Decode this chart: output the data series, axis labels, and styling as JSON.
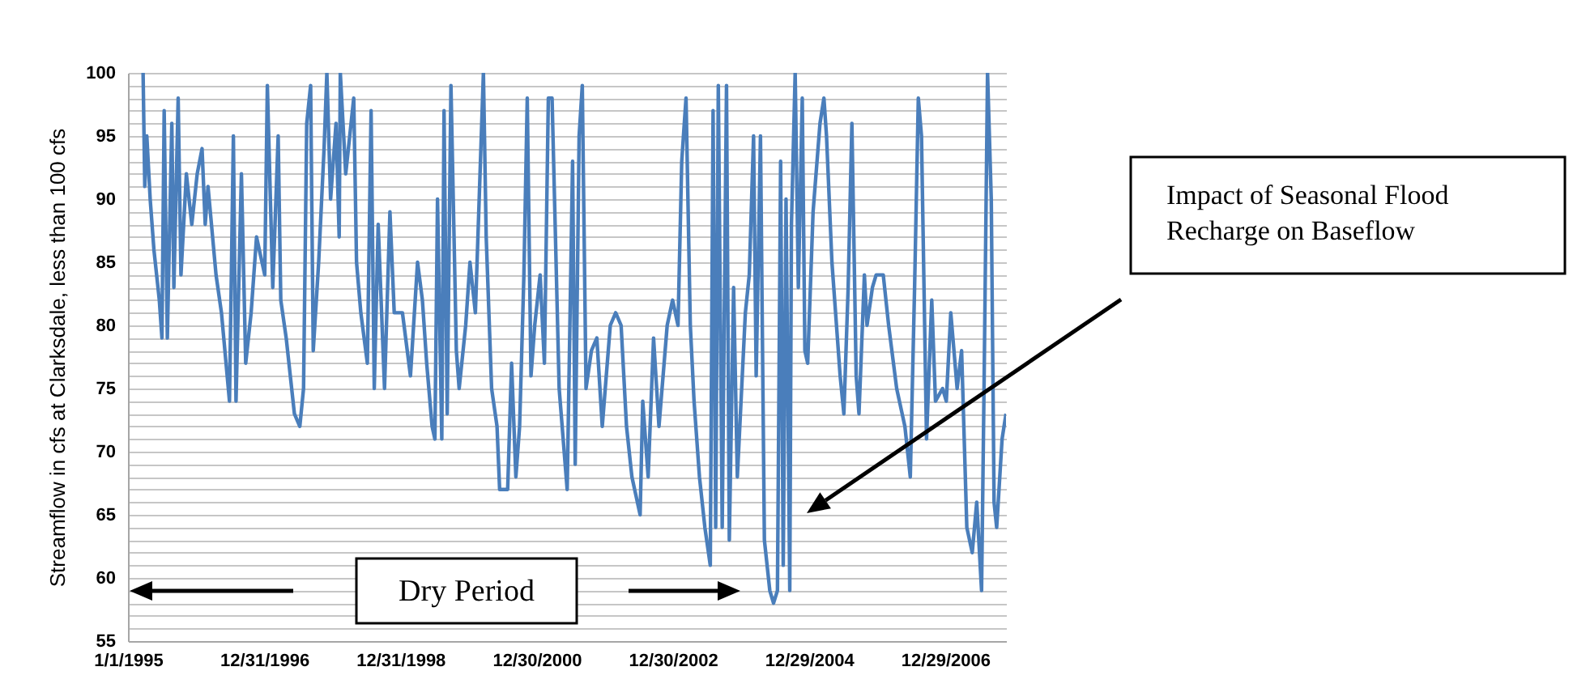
{
  "chart_data": {
    "type": "line",
    "ylabel": "Streamflow in cfs at Clarksdale, less than 100 cfs",
    "color": "#4a7ebb",
    "grid": "y",
    "xlim": [
      "1995-01-01",
      "2007-11-20"
    ],
    "xticks": [
      {
        "value": "1995-01-01",
        "label": "1/1/1995"
      },
      {
        "value": "1996-12-31",
        "label": "12/31/1996"
      },
      {
        "value": "1998-12-31",
        "label": "12/31/1998"
      },
      {
        "value": "2000-12-30",
        "label": "12/30/2000"
      },
      {
        "value": "2002-12-30",
        "label": "12/30/2002"
      },
      {
        "value": "2004-12-29",
        "label": "12/29/2004"
      },
      {
        "value": "2006-12-29",
        "label": "12/29/2006"
      }
    ],
    "ylim": [
      55,
      100
    ],
    "yticks": [
      55,
      {
        "value": 56,
        "label": null
      },
      {
        "value": 57,
        "label": null
      },
      {
        "value": 58,
        "label": null
      },
      {
        "value": 59,
        "label": null
      },
      60,
      {
        "value": 61,
        "label": null
      },
      {
        "value": 62,
        "label": null
      },
      {
        "value": 63,
        "label": null
      },
      {
        "value": 64,
        "label": null
      },
      65,
      {
        "value": 66,
        "label": null
      },
      {
        "value": 67,
        "label": null
      },
      {
        "value": 68,
        "label": null
      },
      {
        "value": 69,
        "label": null
      },
      70,
      {
        "value": 71,
        "label": null
      },
      {
        "value": 72,
        "label": null
      },
      {
        "value": 73,
        "label": null
      },
      {
        "value": 74,
        "label": null
      },
      75,
      {
        "value": 76,
        "label": null
      },
      {
        "value": 77,
        "label": null
      },
      {
        "value": 78,
        "label": null
      },
      {
        "value": 79,
        "label": null
      },
      80,
      {
        "value": 81,
        "label": null
      },
      {
        "value": 82,
        "label": null
      },
      {
        "value": 83,
        "label": null
      },
      {
        "value": 84,
        "label": null
      },
      85,
      {
        "value": 86,
        "label": null
      },
      {
        "value": 87,
        "label": null
      },
      {
        "value": 88,
        "label": null
      },
      {
        "value": 89,
        "label": null
      },
      90,
      {
        "value": 91,
        "label": null
      },
      {
        "value": 92,
        "label": null
      },
      {
        "value": 93,
        "label": null
      },
      {
        "value": 94,
        "label": null
      },
      95,
      {
        "value": 96,
        "label": null
      },
      {
        "value": 97,
        "label": null
      },
      {
        "value": 98,
        "label": null
      },
      {
        "value": 99,
        "label": null
      },
      100
    ],
    "x": [
      "1995-03-23",
      "1995-04-01",
      "1995-04-12",
      "1995-04-30",
      "1995-05-20",
      "1995-06-18",
      "1995-07-02",
      "1995-07-14",
      "1995-07-31",
      "1995-08-24",
      "1995-09-04",
      "1995-09-27",
      "1995-10-12",
      "1995-11-10",
      "1995-12-09",
      "1996-01-07",
      "1996-02-02",
      "1996-02-19",
      "1996-03-05",
      "1996-04-17",
      "1996-05-16",
      "1996-06-28",
      "1996-07-19",
      "1996-08-02",
      "1996-08-31",
      "1996-09-23",
      "1996-10-22",
      "1996-11-20",
      "1997-01-03",
      "1997-01-17",
      "1997-02-15",
      "1997-03-16",
      "1997-03-30",
      "1997-04-28",
      "1997-06-11",
      "1997-07-10",
      "1997-07-30",
      "1997-08-16",
      "1997-09-06",
      "1997-09-20",
      "1997-10-19",
      "1997-11-17",
      "1997-12-02",
      "1997-12-22",
      "1998-01-20",
      "1998-02-06",
      "1998-02-12",
      "1998-03-13",
      "1998-04-25",
      "1998-05-10",
      "1998-06-02",
      "1998-07-07",
      "1998-07-27",
      "1998-08-13",
      "1998-09-03",
      "1998-10-07",
      "1998-11-05",
      "1998-11-28",
      "1999-01-11",
      "1999-02-23",
      "1999-04-02",
      "1999-04-28",
      "1999-05-21",
      "1999-06-19",
      "1999-07-04",
      "1999-07-18",
      "1999-08-10",
      "1999-08-22",
      "1999-09-08",
      "1999-09-28",
      "1999-10-27",
      "1999-11-11",
      "1999-12-16",
      "2000-01-08",
      "2000-02-06",
      "2000-03-20",
      "2000-04-04",
      "2000-05-03",
      "2000-06-01",
      "2000-06-15",
      "2000-07-28",
      "2000-08-18",
      "2000-09-10",
      "2000-09-30",
      "2000-10-23",
      "2000-11-10",
      "2000-11-30",
      "2000-12-20",
      "2001-01-18",
      "2001-02-10",
      "2001-03-03",
      "2001-03-23",
      "2001-04-30",
      "2001-06-12",
      "2001-07-11",
      "2001-07-25",
      "2001-08-15",
      "2001-09-01",
      "2001-09-21",
      "2001-10-20",
      "2001-11-18",
      "2001-12-17",
      "2002-01-29",
      "2002-02-27",
      "2002-03-28",
      "2002-04-26",
      "2002-05-25",
      "2002-07-08",
      "2002-07-22",
      "2002-08-20",
      "2002-09-18",
      "2002-10-17",
      "2002-11-30",
      "2002-12-29",
      "2003-01-27",
      "2003-02-16",
      "2003-03-11",
      "2003-04-03",
      "2003-04-23",
      "2003-05-22",
      "2003-06-20",
      "2003-07-19",
      "2003-08-03",
      "2003-08-17",
      "2003-08-31",
      "2003-09-21",
      "2003-10-14",
      "2003-10-29",
      "2003-11-21",
      "2003-12-11",
      "2004-01-23",
      "2004-02-13",
      "2004-03-07",
      "2004-03-21",
      "2004-04-13",
      "2004-05-04",
      "2004-06-02",
      "2004-06-22",
      "2004-07-13",
      "2004-07-30",
      "2004-08-13",
      "2004-08-28",
      "2004-09-17",
      "2004-09-26",
      "2004-10-16",
      "2004-11-02",
      "2004-11-23",
      "2004-12-07",
      "2004-12-22",
      "2005-01-20",
      "2005-02-26",
      "2005-03-19",
      "2005-04-02",
      "2005-05-01",
      "2005-06-14",
      "2005-07-04",
      "2005-07-27",
      "2005-08-16",
      "2005-09-08",
      "2005-09-23",
      "2005-10-22",
      "2005-11-05",
      "2005-12-04",
      "2005-12-24",
      "2006-01-31",
      "2006-03-01",
      "2006-04-13",
      "2006-05-27",
      "2006-06-25",
      "2006-07-18",
      "2006-08-07",
      "2006-08-24",
      "2006-09-20",
      "2006-10-18",
      "2006-11-07",
      "2006-12-15",
      "2007-01-04",
      "2007-01-28",
      "2007-03-03",
      "2007-03-27",
      "2007-04-24",
      "2007-05-23",
      "2007-06-16",
      "2007-07-12",
      "2007-07-26",
      "2007-08-13",
      "2007-09-02",
      "2007-09-17",
      "2007-10-01",
      "2007-10-30",
      "2007-11-20"
    ],
    "values": [
      100,
      91,
      95,
      90,
      86,
      82,
      79,
      97,
      79,
      96,
      83,
      98,
      84,
      92,
      88,
      92,
      94,
      88,
      91,
      84,
      81,
      74,
      95,
      74,
      92,
      77,
      81,
      87,
      84,
      99,
      83,
      95,
      82,
      79,
      73,
      72,
      75,
      96,
      99,
      78,
      85,
      94,
      100,
      90,
      96,
      87,
      100,
      92,
      98,
      85,
      81,
      77,
      97,
      75,
      88,
      75,
      89,
      81,
      81,
      76,
      85,
      82,
      77,
      72,
      71,
      90,
      71,
      97,
      73,
      99,
      78,
      75,
      80,
      85,
      81,
      100,
      87,
      75,
      72,
      67,
      67,
      77,
      68,
      72,
      84,
      98,
      76,
      80,
      84,
      77,
      98,
      98,
      75,
      67,
      93,
      69,
      95,
      99,
      75,
      78,
      79,
      72,
      80,
      81,
      80,
      72,
      68,
      65,
      74,
      68,
      79,
      72,
      80,
      82,
      80,
      93,
      98,
      80,
      74,
      68,
      64,
      61,
      97,
      64,
      99,
      64,
      99,
      63,
      83,
      68,
      81,
      84,
      95,
      76,
      95,
      63,
      59,
      58,
      59,
      93,
      61,
      90,
      59,
      88,
      100,
      83,
      98,
      78,
      77,
      89,
      96,
      98,
      95,
      85,
      76,
      73,
      83,
      96,
      76,
      73,
      84,
      80,
      83,
      84,
      84,
      80,
      75,
      72,
      68,
      83,
      98,
      95,
      71,
      82,
      74,
      75,
      74,
      81,
      75,
      78,
      64,
      62,
      66,
      59,
      76,
      100,
      90,
      66,
      64,
      71,
      73
    ],
    "annotations": [
      "Impact of Seasonal Flood Recharge on Baseflow",
      "Dry Period"
    ]
  }
}
